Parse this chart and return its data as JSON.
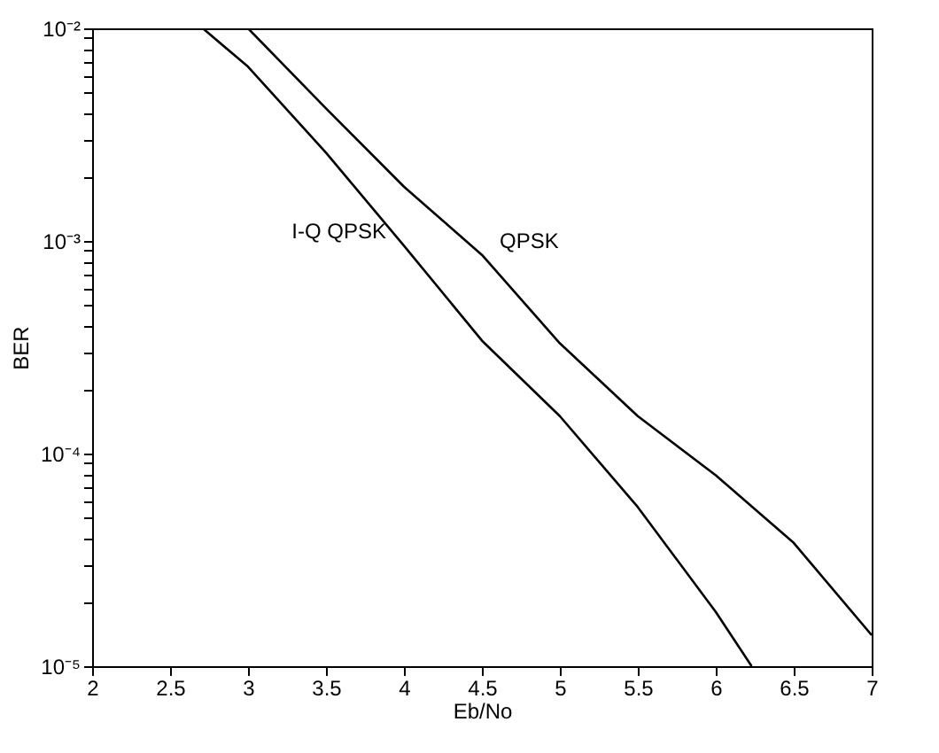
{
  "chart_data": {
    "type": "line",
    "xlabel": "Eb/No",
    "ylabel": "BER",
    "log": "y",
    "grid": false,
    "line_style": "solid",
    "marker": "none",
    "xlim": [
      2,
      7
    ],
    "xticks": [
      2,
      2.5,
      3,
      3.5,
      4,
      4.5,
      5,
      5.5,
      6,
      6.5,
      7
    ],
    "ylim": [
      1e-05,
      0.01
    ],
    "yticks": [
      {
        "value": 1e-05,
        "label": "10⁻⁵"
      },
      {
        "value": 2e-05,
        "label": null
      },
      {
        "value": 3e-05,
        "label": null
      },
      {
        "value": 4e-05,
        "label": null
      },
      {
        "value": 5e-05,
        "label": null
      },
      {
        "value": 6e-05,
        "label": null
      },
      {
        "value": 7e-05,
        "label": null
      },
      {
        "value": 8e-05,
        "label": null
      },
      {
        "value": 9e-05,
        "label": null
      },
      {
        "value": 0.0001,
        "label": "10⁻⁴"
      },
      {
        "value": 0.0002,
        "label": null
      },
      {
        "value": 0.0003,
        "label": null
      },
      {
        "value": 0.0004,
        "label": null
      },
      {
        "value": 0.0005,
        "label": null
      },
      {
        "value": 0.0006,
        "label": null
      },
      {
        "value": 0.0007,
        "label": null
      },
      {
        "value": 0.0008,
        "label": null
      },
      {
        "value": 0.0009,
        "label": null
      },
      {
        "value": 0.001,
        "label": "10⁻³"
      },
      {
        "value": 0.002,
        "label": null
      },
      {
        "value": 0.003,
        "label": null
      },
      {
        "value": 0.004,
        "label": null
      },
      {
        "value": 0.005,
        "label": null
      },
      {
        "value": 0.006,
        "label": null
      },
      {
        "value": 0.007,
        "label": null
      },
      {
        "value": 0.008,
        "label": null
      },
      {
        "value": 0.009,
        "label": null
      },
      {
        "value": 0.01,
        "label": "10⁻²"
      }
    ],
    "series": [
      {
        "name": "I-Q QPSK",
        "color": "#000000",
        "x": [
          2.71,
          3,
          3.5,
          4,
          4.5,
          5,
          5.5,
          6,
          6.23
        ],
        "values": [
          0.01,
          0.0066,
          0.0026,
          0.00095,
          0.00034,
          0.00015,
          5.6e-05,
          1.8e-05,
          1e-05
        ]
      },
      {
        "name": "QPSK",
        "color": "#000000",
        "x": [
          3,
          3.5,
          4,
          4.5,
          5,
          5.5,
          6,
          6.5,
          7
        ],
        "values": [
          0.01,
          0.0042,
          0.0018,
          0.00086,
          0.00033,
          0.00015,
          7.9e-05,
          3.8e-05,
          1.4e-05
        ]
      }
    ]
  }
}
